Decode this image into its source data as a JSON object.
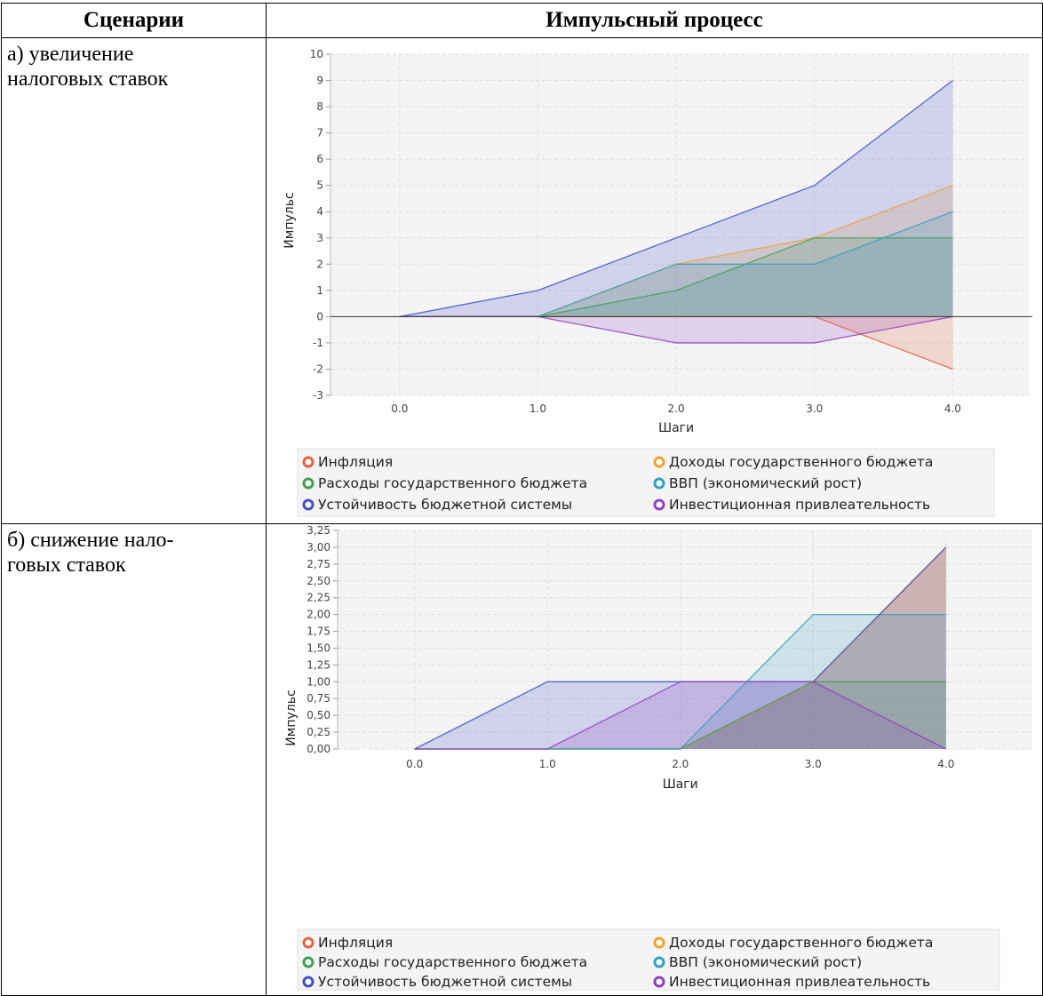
{
  "table": {
    "header_scenarios": "Сценарии",
    "header_process": "Импульсный процесс"
  },
  "scenarios": [
    {
      "label_line1": "а) увеличение",
      "label_line2": "налоговых ставок"
    },
    {
      "label_line1": "б) снижение нало-",
      "label_line2": "говых ставок"
    }
  ],
  "chart_data": [
    {
      "type": "area",
      "xlabel": "Шаги",
      "ylabel": "Импульс",
      "x": [
        0,
        1,
        2,
        3,
        4
      ],
      "x_tick_labels": [
        "0.0",
        "1.0",
        "2.0",
        "3.0",
        "4.0"
      ],
      "xlim": [
        -0.5,
        4.55
      ],
      "ylim": [
        -3,
        10
      ],
      "y_ticks": [
        -3,
        -2,
        -1,
        0,
        1,
        2,
        3,
        4,
        5,
        6,
        7,
        8,
        9,
        10
      ],
      "y_tick_labels": [
        "-3",
        "-2",
        "-1",
        "0",
        "1",
        "2",
        "3",
        "4",
        "5",
        "6",
        "7",
        "8",
        "9",
        "10"
      ],
      "grid": true,
      "legend_position": "bottom",
      "series": [
        {
          "name": "Инфляция",
          "color": "#e8603c",
          "values": [
            0,
            0,
            0,
            0,
            -2
          ]
        },
        {
          "name": "Доходы государственного бюджета",
          "color": "#f0a030",
          "values": [
            0,
            0,
            2,
            3,
            5
          ]
        },
        {
          "name": "Расходы государственного бюджета",
          "color": "#3fa050",
          "values": [
            0,
            0,
            1,
            3,
            3
          ]
        },
        {
          "name": "ВВП (экономический рост)",
          "color": "#30a0c0",
          "values": [
            0,
            0,
            2,
            2,
            4
          ]
        },
        {
          "name": "Устойчивость бюджетной системы",
          "color": "#4050c8",
          "values": [
            0,
            1,
            3,
            5,
            9
          ]
        },
        {
          "name": "Инвестиционная привлеательность",
          "color": "#9040c0",
          "values": [
            0,
            0,
            -1,
            -1,
            0
          ]
        }
      ]
    },
    {
      "type": "area",
      "xlabel": "Шаги",
      "ylabel": "Импульс",
      "x": [
        0,
        1,
        2,
        3,
        4
      ],
      "x_tick_labels": [
        "0.0",
        "1.0",
        "2.0",
        "3.0",
        "4.0"
      ],
      "xlim": [
        -0.58,
        4.65
      ],
      "ylim": [
        0,
        3.25
      ],
      "y_ticks": [
        0,
        0.25,
        0.5,
        0.75,
        1,
        1.25,
        1.5,
        1.75,
        2,
        2.25,
        2.5,
        2.75,
        3,
        3.25
      ],
      "y_tick_labels": [
        "0,00",
        "0,25",
        "0,50",
        "0,75",
        "1,00",
        "1,25",
        "1,50",
        "1,75",
        "2,00",
        "2,25",
        "2,50",
        "2,75",
        "3,00",
        "3,25"
      ],
      "grid": true,
      "legend_position": "bottom",
      "series": [
        {
          "name": "Инфляция",
          "color": "#e8603c",
          "values": [
            0,
            0,
            0,
            1,
            3
          ]
        },
        {
          "name": "Доходы государственного бюджета",
          "color": "#f0a030",
          "values": [
            0,
            0,
            0,
            1,
            3
          ]
        },
        {
          "name": "Расходы государственного бюджета",
          "color": "#3fa050",
          "values": [
            0,
            0,
            0,
            1,
            1
          ]
        },
        {
          "name": "ВВП (экономический рост)",
          "color": "#30a0c0",
          "values": [
            0,
            0,
            0,
            2,
            2
          ]
        },
        {
          "name": "Устойчивость бюджетной системы",
          "color": "#4050c8",
          "values": [
            0,
            1,
            1,
            1,
            3
          ]
        },
        {
          "name": "Инвестиционная привлеательность",
          "color": "#9040c0",
          "values": [
            0,
            0,
            1,
            1,
            0
          ]
        }
      ]
    }
  ]
}
